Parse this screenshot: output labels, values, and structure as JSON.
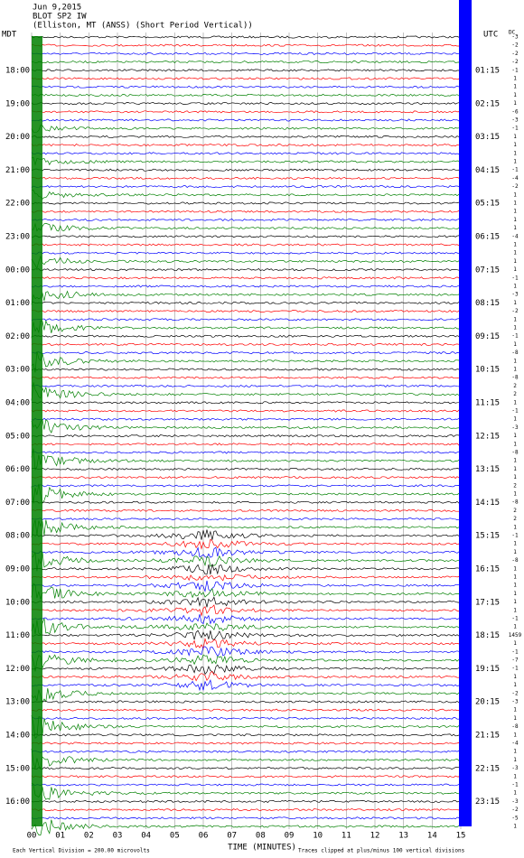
{
  "header": {
    "date": "Jun 9,2015",
    "station": "BLOT SP2 IW",
    "location": "(Elliston, MT (ANSS) (Short Period Vertical))"
  },
  "left_axis": {
    "title": "MDT",
    "labels": [
      "18:00",
      "19:00",
      "20:00",
      "21:00",
      "22:00",
      "23:00",
      "00:00",
      "01:00",
      "02:00",
      "03:00",
      "04:00",
      "05:00",
      "06:00",
      "07:00",
      "08:00",
      "09:00",
      "10:00",
      "11:00",
      "12:00",
      "13:00",
      "14:00",
      "15:00",
      "16:00"
    ]
  },
  "right_axis": {
    "title": "UTC",
    "labels": [
      "01:15",
      "02:15",
      "03:15",
      "04:15",
      "05:15",
      "06:15",
      "07:15",
      "08:15",
      "09:15",
      "10:15",
      "11:15",
      "12:15",
      "13:15",
      "14:15",
      "15:15",
      "16:15",
      "17:15",
      "18:15",
      "19:15",
      "20:15",
      "21:15",
      "22:15",
      "23:15"
    ]
  },
  "offsets": {
    "title": "DC",
    "values": [
      -3,
      -2,
      -2,
      -2,
      -1,
      1,
      1,
      1,
      1,
      -6,
      -3,
      -1,
      1,
      1,
      1,
      1,
      -1,
      -4,
      -2,
      1,
      1,
      1,
      1,
      1,
      -4,
      1,
      1,
      1,
      1,
      -1,
      1,
      -3,
      1,
      -2,
      1,
      1,
      -1,
      1,
      -8,
      1,
      1,
      -8,
      2,
      2,
      1,
      -1,
      1,
      -3,
      1,
      1,
      -8,
      1,
      1,
      1,
      2,
      1,
      -8,
      2,
      2,
      1,
      -1,
      1,
      1,
      -8,
      1,
      1,
      1,
      1,
      1,
      1,
      -1,
      1,
      1459,
      1,
      -1,
      -7,
      -1,
      1,
      1,
      -2,
      -3,
      1,
      1,
      -8,
      1,
      -4,
      1,
      1,
      -3,
      1,
      -1,
      1,
      -3,
      -2,
      -5,
      1
    ]
  },
  "x_axis": {
    "title": "TIME (MINUTES)",
    "ticks": [
      {
        "value": 0,
        "label": "00"
      },
      {
        "value": 1,
        "label": "01"
      },
      {
        "value": 2,
        "label": "02"
      },
      {
        "value": 3,
        "label": "03"
      },
      {
        "value": 4,
        "label": "04"
      },
      {
        "value": 5,
        "label": "05"
      },
      {
        "value": 6,
        "label": "06"
      },
      {
        "value": 7,
        "label": "07"
      },
      {
        "value": 8,
        "label": "08"
      },
      {
        "value": 9,
        "label": "09"
      },
      {
        "value": 10,
        "label": "10"
      },
      {
        "value": 11,
        "label": "11"
      },
      {
        "value": 12,
        "label": "12"
      },
      {
        "value": 13,
        "label": "13"
      },
      {
        "value": 14,
        "label": "14"
      },
      {
        "value": 15,
        "label": "15"
      }
    ]
  },
  "footer": {
    "scale": "Each Vertical Division = 200.00 microvolts",
    "clip": "Traces clipped at plus/minus 100 vertical divisions"
  }
}
